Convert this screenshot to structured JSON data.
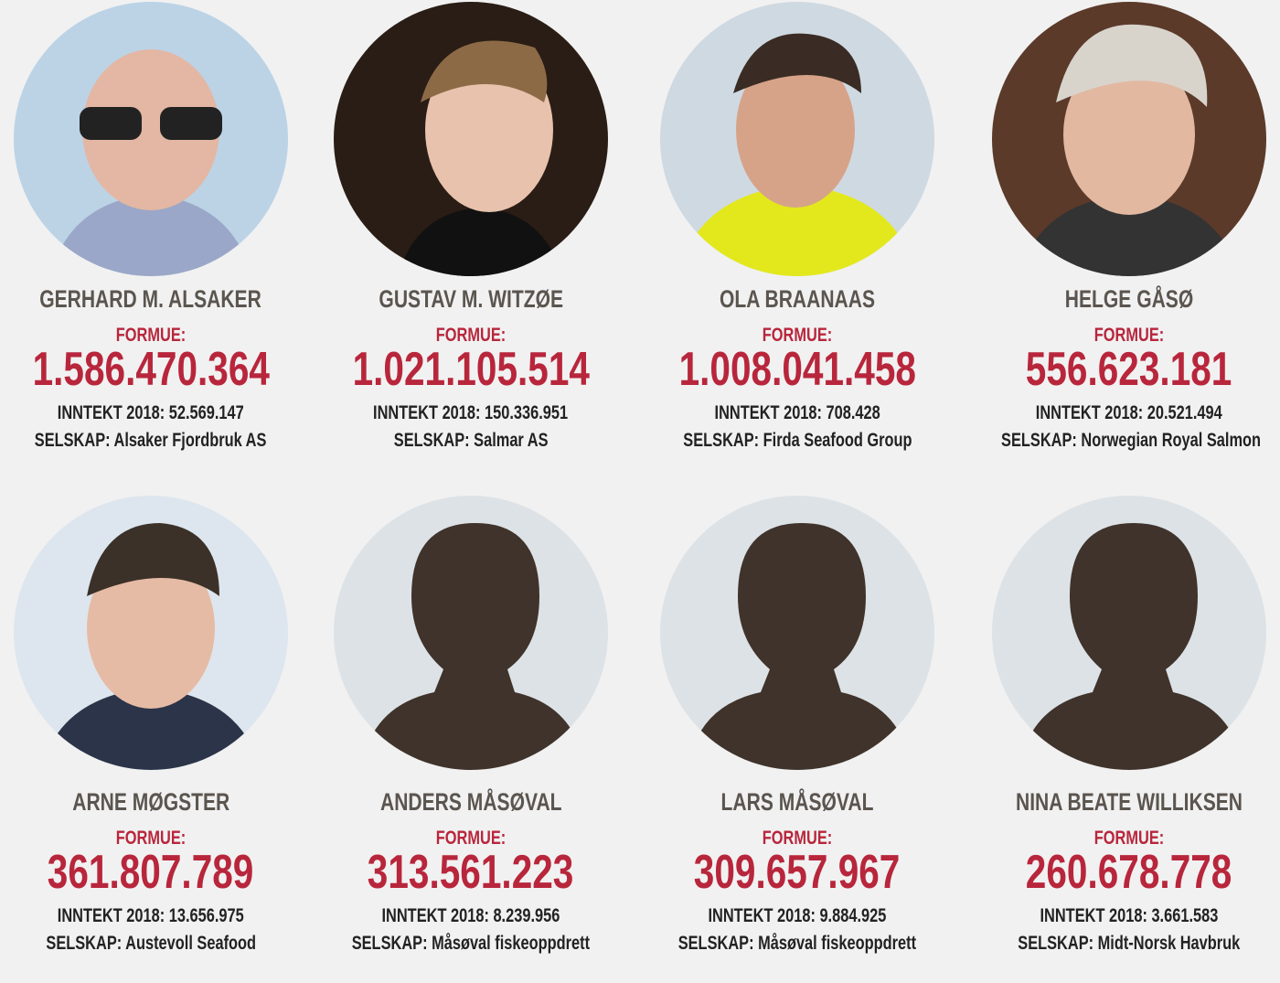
{
  "people": [
    {
      "name": "GERHARD M. ALSAKER",
      "formue_label": "FORMUE:",
      "formue": "1.586.470.364",
      "inntekt": "INNTEKT 2018: 52.569.147",
      "selskap": "SELSKAP: Alsaker Fjordbruk AS"
    },
    {
      "name": "GUSTAV M. WITZØE",
      "formue_label": "FORMUE:",
      "formue": "1.021.105.514",
      "inntekt": "INNTEKT 2018: 150.336.951",
      "selskap": "SELSKAP: Salmar AS"
    },
    {
      "name": "OLA BRAANAAS",
      "formue_label": "FORMUE:",
      "formue": "1.008.041.458",
      "inntekt": "INNTEKT 2018: 708.428",
      "selskap": "SELSKAP: Firda Seafood Group"
    },
    {
      "name": "HELGE GÅSØ",
      "formue_label": "FORMUE:",
      "formue": "556.623.181",
      "inntekt": "INNTEKT 2018: 20.521.494",
      "selskap": "SELSKAP: Norwegian Royal Salmon"
    },
    {
      "name": "ARNE MØGSTER",
      "formue_label": "FORMUE:",
      "formue": "361.807.789",
      "inntekt": "INNTEKT 2018: 13.656.975",
      "selskap": "SELSKAP: Austevoll Seafood"
    },
    {
      "name": "ANDERS MÅSØVAL",
      "formue_label": "FORMUE:",
      "formue": "313.561.223",
      "inntekt": "INNTEKT 2018: 8.239.956",
      "selskap": "SELSKAP: Måsøval fiskeoppdrett"
    },
    {
      "name": "LARS MÅSØVAL",
      "formue_label": "FORMUE:",
      "formue": "309.657.967",
      "inntekt": "INNTEKT 2018: 9.884.925",
      "selskap": "SELSKAP: Måsøval fiskeoppdrett"
    },
    {
      "name": "NINA BEATE WILLIKSEN",
      "formue_label": "FORMUE:",
      "formue": "260.678.778",
      "inntekt": "INNTEKT 2018: 3.661.583",
      "selskap": "SELSKAP: Midt-Norsk Havbruk"
    }
  ]
}
